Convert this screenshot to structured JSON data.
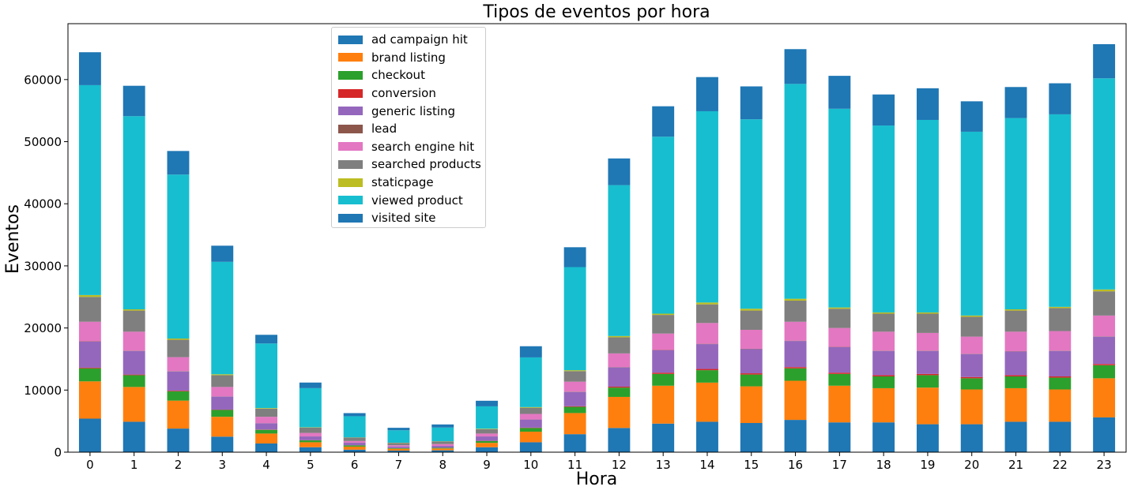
{
  "chart_data": {
    "type": "bar",
    "stacked": true,
    "title": "Tipos de eventos por hora",
    "xlabel": "Hora",
    "ylabel": "Eventos",
    "ylim": [
      0,
      69000
    ],
    "yticks": [
      0,
      10000,
      20000,
      30000,
      40000,
      50000,
      60000
    ],
    "grid": false,
    "legend_position": "upper-center",
    "categories": [
      "0",
      "1",
      "2",
      "3",
      "4",
      "5",
      "6",
      "7",
      "8",
      "9",
      "10",
      "11",
      "12",
      "13",
      "14",
      "15",
      "16",
      "17",
      "18",
      "19",
      "20",
      "21",
      "22",
      "23"
    ],
    "series": [
      {
        "name": "ad campaign hit",
        "color": "#1f77b4",
        "values": [
          5400,
          4900,
          3800,
          2500,
          1400,
          800,
          400,
          250,
          300,
          800,
          1600,
          2900,
          3900,
          4600,
          4900,
          4700,
          5200,
          4800,
          4800,
          4500,
          4500,
          4900,
          4900,
          5600
        ]
      },
      {
        "name": "brand listing",
        "color": "#ff7f0e",
        "values": [
          6000,
          5600,
          4500,
          3200,
          1600,
          800,
          500,
          300,
          300,
          700,
          1700,
          3400,
          5000,
          6100,
          6300,
          5900,
          6300,
          5900,
          5500,
          5900,
          5600,
          5400,
          5200,
          6300
        ]
      },
      {
        "name": "checkout",
        "color": "#2ca02c",
        "values": [
          2100,
          1900,
          1500,
          1100,
          600,
          300,
          200,
          100,
          100,
          300,
          600,
          1000,
          1500,
          1900,
          2000,
          1900,
          2000,
          1900,
          1900,
          2000,
          1800,
          1900,
          1900,
          2100
        ]
      },
      {
        "name": "conversion",
        "color": "#d62728",
        "values": [
          100,
          100,
          100,
          50,
          50,
          30,
          20,
          10,
          10,
          30,
          50,
          100,
          150,
          200,
          200,
          200,
          200,
          200,
          200,
          200,
          200,
          200,
          200,
          200
        ]
      },
      {
        "name": "generic listing",
        "color": "#9467bd",
        "values": [
          4200,
          3800,
          3100,
          2100,
          1000,
          600,
          400,
          250,
          300,
          700,
          1300,
          2300,
          3100,
          3600,
          4000,
          3900,
          4200,
          4100,
          3900,
          3700,
          3700,
          3800,
          4100,
          4400
        ]
      },
      {
        "name": "lead",
        "color": "#8c564b",
        "values": [
          50,
          50,
          50,
          30,
          20,
          10,
          10,
          5,
          5,
          10,
          20,
          50,
          50,
          50,
          50,
          50,
          50,
          50,
          50,
          50,
          50,
          50,
          50,
          50
        ]
      },
      {
        "name": "search engine hit",
        "color": "#e377c2",
        "values": [
          3150,
          3050,
          2250,
          1520,
          1030,
          560,
          270,
          200,
          290,
          460,
          890,
          1600,
          2200,
          2650,
          3350,
          3050,
          3050,
          3050,
          3050,
          2850,
          2750,
          3150,
          3150,
          3350
        ]
      },
      {
        "name": "searched products",
        "color": "#7f7f7f",
        "values": [
          4000,
          3400,
          2800,
          1900,
          1300,
          860,
          550,
          380,
          430,
          700,
          1000,
          1700,
          2600,
          3000,
          3000,
          3100,
          3400,
          3100,
          2900,
          3100,
          3200,
          3400,
          3700,
          3900
        ]
      },
      {
        "name": "staticpage",
        "color": "#bcbd22",
        "values": [
          300,
          200,
          200,
          150,
          100,
          50,
          40,
          30,
          30,
          80,
          100,
          150,
          200,
          200,
          300,
          300,
          300,
          200,
          200,
          200,
          200,
          200,
          200,
          300
        ]
      },
      {
        "name": "viewed product",
        "color": "#17becf",
        "values": [
          33800,
          31100,
          26400,
          18100,
          10400,
          6300,
          3400,
          2000,
          2200,
          3600,
          8000,
          16600,
          24300,
          28500,
          30800,
          30500,
          34600,
          32000,
          30100,
          31000,
          29600,
          30800,
          31000,
          34000
        ]
      },
      {
        "name": "visited site",
        "color": "#1f77b4",
        "values": [
          5300,
          4900,
          3800,
          2600,
          1400,
          900,
          500,
          400,
          500,
          900,
          1800,
          3200,
          4300,
          4900,
          5500,
          5300,
          5600,
          5300,
          5000,
          5100,
          4900,
          5000,
          5000,
          5500
        ]
      }
    ]
  }
}
